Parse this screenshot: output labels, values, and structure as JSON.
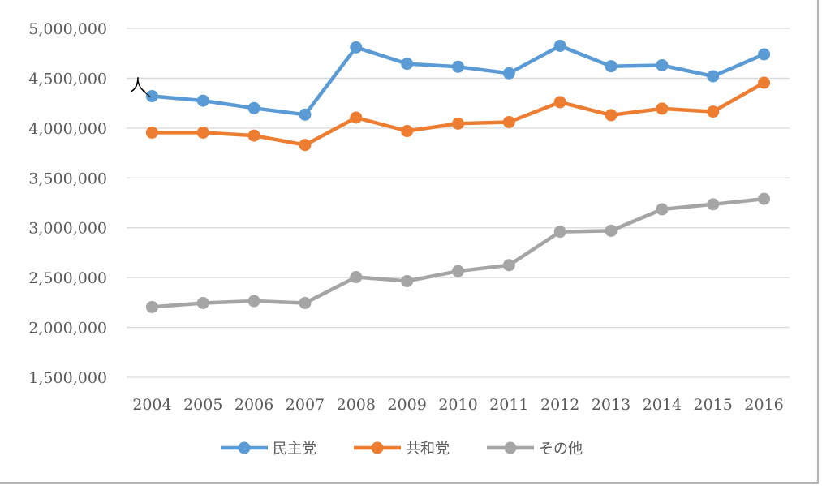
{
  "chart_data": {
    "type": "line",
    "unit_label": "人",
    "x": [
      "2004",
      "2005",
      "2006",
      "2007",
      "2008",
      "2009",
      "2010",
      "2011",
      "2012",
      "2013",
      "2014",
      "2015",
      "2016"
    ],
    "ylim": [
      1500000,
      5000000
    ],
    "yticks": [
      1500000,
      2000000,
      2500000,
      3000000,
      3500000,
      4000000,
      4500000,
      5000000
    ],
    "ytick_labels": [
      "1,500,000",
      "2,000,000",
      "2,500,000",
      "3,000,000",
      "3,500,000",
      "4,000,000",
      "4,500,000",
      "5,000,000"
    ],
    "grid": true,
    "legend": "bottom",
    "series": [
      {
        "name": "民主党",
        "color": "#5b9bd5",
        "values": [
          4320000,
          4275000,
          4200000,
          4135000,
          4810000,
          4645000,
          4615000,
          4550000,
          4825000,
          4620000,
          4630000,
          4520000,
          4740000
        ]
      },
      {
        "name": "共和党",
        "color": "#ed7d31",
        "values": [
          3955000,
          3955000,
          3925000,
          3830000,
          4105000,
          3970000,
          4045000,
          4060000,
          4260000,
          4130000,
          4195000,
          4165000,
          4455000
        ]
      },
      {
        "name": "その他",
        "color": "#a5a5a5",
        "values": [
          2205000,
          2245000,
          2265000,
          2245000,
          2505000,
          2465000,
          2565000,
          2625000,
          2960000,
          2970000,
          3185000,
          3235000,
          3290000
        ]
      }
    ]
  }
}
